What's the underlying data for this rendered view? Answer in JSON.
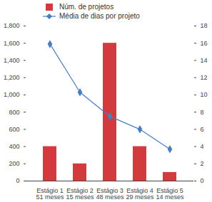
{
  "chart_data": {
    "type": "bar",
    "categories": [
      "Estágio 1\n51 meses",
      "Estágio 2\n15 meses",
      "Estágio 3\n48 meses",
      "Estágio 4\n29 meses",
      "Estágio 5\n14 meses"
    ],
    "series": [
      {
        "name": "Núm. de projetos",
        "type": "bar",
        "color": "#d23a3d",
        "values": [
          400,
          200,
          1600,
          400,
          100
        ]
      },
      {
        "name": "Média de dias por projeto",
        "type": "line",
        "axis": "y2",
        "color": "#4a7cc2",
        "marker": "diamond",
        "values": [
          15.9,
          10.3,
          7.5,
          6.0,
          3.7
        ]
      }
    ],
    "ylim": [
      0,
      1800
    ],
    "yticks": [
      0,
      200,
      400,
      600,
      800,
      1000,
      1200,
      1400,
      1600,
      1800
    ],
    "y2lim": [
      0,
      18
    ],
    "y2ticks": [
      0,
      2,
      4,
      6,
      8,
      10,
      12,
      14,
      16,
      18
    ],
    "legend": "top"
  }
}
